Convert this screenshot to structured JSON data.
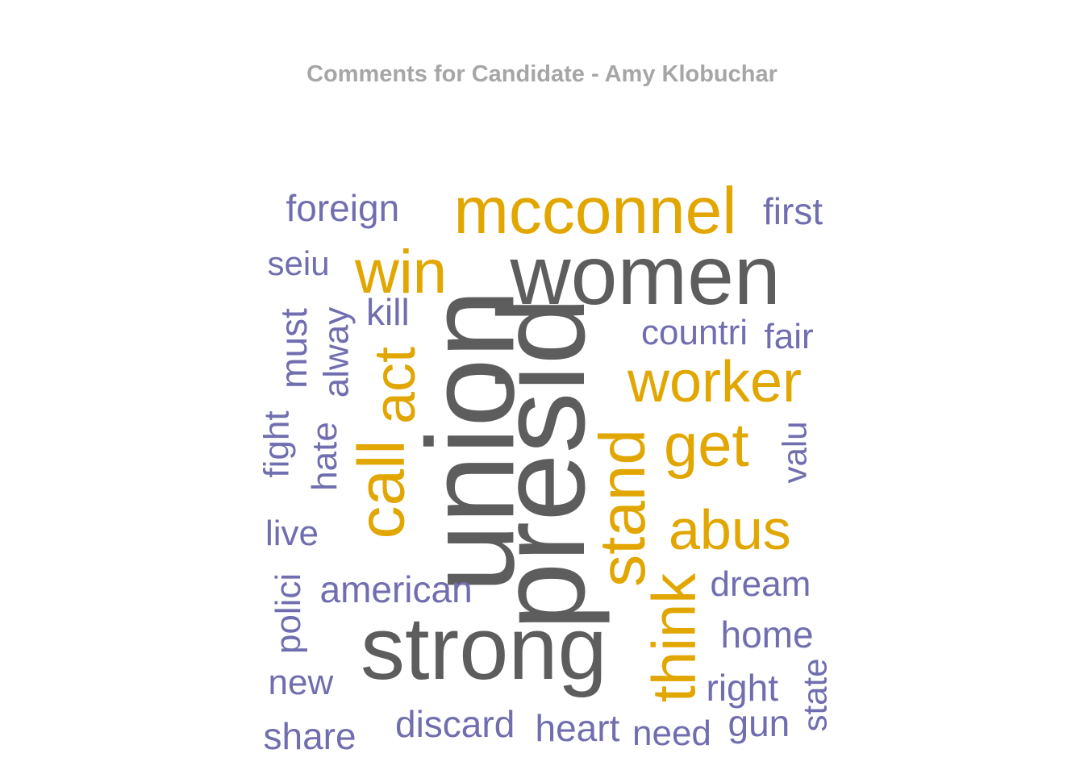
{
  "title": "Comments for Candidate - Amy Klobuchar",
  "colors": {
    "high": "#5d5d5d",
    "mid": "#e2a600",
    "low": "#716eb0",
    "title": "#a6a6a6"
  },
  "words": [
    {
      "text": "women",
      "tier": "high"
    },
    {
      "text": "union",
      "tier": "high"
    },
    {
      "text": "presid",
      "tier": "high"
    },
    {
      "text": "strong",
      "tier": "high"
    },
    {
      "text": "mcconnel",
      "tier": "mid"
    },
    {
      "text": "win",
      "tier": "mid"
    },
    {
      "text": "act",
      "tier": "mid"
    },
    {
      "text": "call",
      "tier": "mid"
    },
    {
      "text": "worker",
      "tier": "mid"
    },
    {
      "text": "get",
      "tier": "mid"
    },
    {
      "text": "stand",
      "tier": "mid"
    },
    {
      "text": "abus",
      "tier": "mid"
    },
    {
      "text": "think",
      "tier": "mid"
    },
    {
      "text": "foreign",
      "tier": "low"
    },
    {
      "text": "first",
      "tier": "low"
    },
    {
      "text": "seiu",
      "tier": "low"
    },
    {
      "text": "kill",
      "tier": "low"
    },
    {
      "text": "must",
      "tier": "low"
    },
    {
      "text": "alway",
      "tier": "low"
    },
    {
      "text": "fight",
      "tier": "low"
    },
    {
      "text": "hate",
      "tier": "low"
    },
    {
      "text": "countri",
      "tier": "low"
    },
    {
      "text": "fair",
      "tier": "low"
    },
    {
      "text": "valu",
      "tier": "low"
    },
    {
      "text": "live",
      "tier": "low"
    },
    {
      "text": "polici",
      "tier": "low"
    },
    {
      "text": "american",
      "tier": "low"
    },
    {
      "text": "dream",
      "tier": "low"
    },
    {
      "text": "home",
      "tier": "low"
    },
    {
      "text": "new",
      "tier": "low"
    },
    {
      "text": "right",
      "tier": "low"
    },
    {
      "text": "state",
      "tier": "low"
    },
    {
      "text": "share",
      "tier": "low"
    },
    {
      "text": "discard",
      "tier": "low"
    },
    {
      "text": "heart",
      "tier": "low"
    },
    {
      "text": "need",
      "tier": "low"
    },
    {
      "text": "gun",
      "tier": "low"
    }
  ]
}
